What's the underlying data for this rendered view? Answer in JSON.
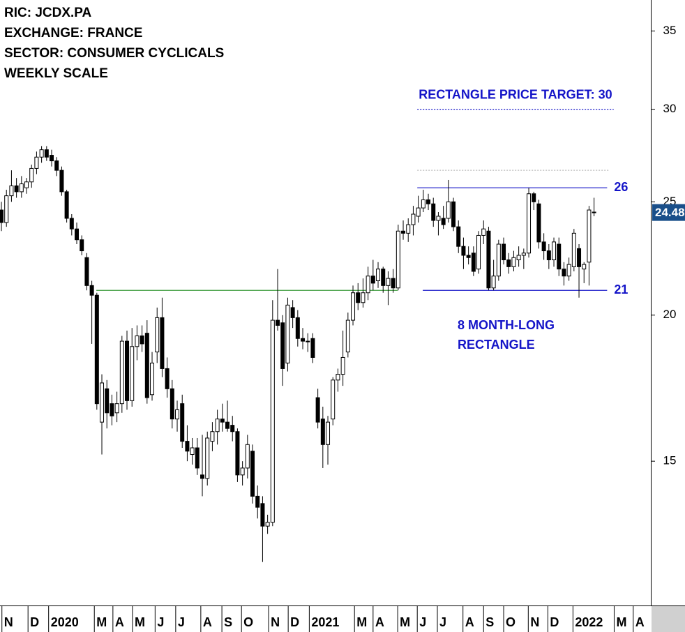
{
  "chart_data": {
    "type": "candlestick",
    "header": [
      "RIC: JCDX.PA",
      "EXCHANGE: FRANCE",
      "SECTOR: CONSUMER CYCLICALS",
      "WEEKLY SCALE"
    ],
    "annotation": [
      "8 MONTH-LONG",
      "RECTANGLE"
    ],
    "log_scale": true,
    "ylim": [
      11.29,
      37.2
    ],
    "yticks": [
      15,
      20,
      25,
      30,
      35
    ],
    "xlim": [
      -0.28,
      129.3
    ],
    "xticks": [
      {
        "value": 0.1,
        "label": "N"
      },
      {
        "value": 5.3,
        "label": "D"
      },
      {
        "value": 9.4,
        "label": "2020"
      },
      {
        "value": 18.5,
        "label": "M"
      },
      {
        "value": 22.2,
        "label": "A"
      },
      {
        "value": 26.1,
        "label": "M"
      },
      {
        "value": 30.6,
        "label": "J"
      },
      {
        "value": 34.7,
        "label": "J"
      },
      {
        "value": 39.7,
        "label": "A"
      },
      {
        "value": 43.9,
        "label": "S"
      },
      {
        "value": 47.8,
        "label": "O"
      },
      {
        "value": 53.2,
        "label": "N"
      },
      {
        "value": 57.1,
        "label": "D"
      },
      {
        "value": 61.3,
        "label": "2021"
      },
      {
        "value": 70.3,
        "label": "M"
      },
      {
        "value": 74.0,
        "label": "A"
      },
      {
        "value": 78.9,
        "label": "M"
      },
      {
        "value": 82.8,
        "label": "J"
      },
      {
        "value": 86.8,
        "label": "J"
      },
      {
        "value": 91.9,
        "label": "A"
      },
      {
        "value": 96.0,
        "label": "S"
      },
      {
        "value": 100.0,
        "label": "O"
      },
      {
        "value": 104.9,
        "label": "N"
      },
      {
        "value": 108.8,
        "label": "D"
      },
      {
        "value": 113.8,
        "label": "2022"
      },
      {
        "value": 122.0,
        "label": "M"
      },
      {
        "value": 125.8,
        "label": "A"
      }
    ],
    "up_color": "#ffffff",
    "down_color": "#000000",
    "price_tag_color": "#1a4f8a",
    "levels": [
      {
        "value": 25.7,
        "label": "26",
        "x": [
          82.8,
          120.6
        ],
        "color": "#1414c8"
      },
      {
        "value": 21,
        "label": "21",
        "x": [
          83.9,
          120.6
        ],
        "color": "#1414c8"
      },
      {
        "value": 21,
        "x": [
          18.9,
          78.9
        ],
        "color": "#3a9a3a"
      },
      {
        "value": 26.6,
        "x": [
          82.8,
          120.9
        ],
        "color": "#bbbbbb",
        "dash": true
      },
      {
        "value": 30,
        "label": "RECTANGLE PRICE TARGET: 30",
        "x": [
          82.8,
          121.9
        ],
        "color": "#1414c8",
        "dash": true
      }
    ],
    "x": [
      0,
      1,
      2,
      3,
      4,
      5,
      6,
      7,
      8,
      9,
      10,
      11,
      12,
      13,
      14,
      15,
      16,
      17,
      18,
      19,
      20,
      21,
      22,
      23,
      24,
      25,
      26,
      27,
      28,
      29,
      30,
      31,
      32,
      33,
      34,
      35,
      36,
      37,
      38,
      39,
      40,
      41,
      42,
      43,
      44,
      45,
      46,
      47,
      48,
      49,
      50,
      51,
      52,
      53,
      54,
      55,
      56,
      57,
      58,
      59,
      60,
      61,
      62,
      63,
      64,
      65,
      66,
      67,
      68,
      69,
      70,
      71,
      72,
      73,
      74,
      75,
      76,
      77,
      78,
      79,
      80,
      81,
      82,
      83,
      84,
      85,
      86,
      87,
      88,
      89,
      90,
      91,
      92,
      93,
      94,
      95,
      96,
      97,
      98,
      99,
      100,
      101,
      102,
      103,
      104,
      105,
      106,
      107,
      108,
      109,
      110,
      111,
      112,
      113,
      114,
      115,
      116,
      117,
      118
    ],
    "open": [
      24.6,
      24.0,
      25.3,
      25.8,
      25.5,
      25.7,
      26.0,
      26.7,
      27.3,
      27.7,
      27.4,
      27.1,
      26.6,
      25.5,
      24.2,
      23.7,
      23.2,
      22.4,
      21.2,
      20.8,
      16.2,
      17.3,
      16.8,
      16.5,
      16.8,
      19.0,
      16.9,
      18.8,
      19.2,
      19.3,
      17.1,
      18.6,
      19.9,
      18.0,
      17.3,
      16.3,
      16.8,
      15.6,
      15.2,
      15.4,
      14.6,
      14.5,
      15.6,
      15.9,
      16.3,
      16.2,
      16.1,
      15.9,
      14.6,
      14.8,
      15.3,
      14.0,
      13.8,
      13.2,
      13.3,
      19.8,
      19.7,
      18.2,
      20.3,
      19.9,
      19.1,
      19.0,
      19.1,
      17.0,
      16.3,
      15.5,
      16.3,
      17.6,
      17.8,
      18.6,
      19.8,
      20.9,
      20.5,
      20.9,
      21.6,
      21.4,
      21.9,
      21.2,
      21.5,
      21.1,
      23.6,
      23.5,
      23.9,
      24.3,
      24.7,
      25.1,
      24.9,
      24.1,
      24.2,
      24.2,
      25.0,
      23.8,
      22.9,
      22.5,
      22.6,
      21.9,
      23.4,
      23.6,
      21.1,
      21.6,
      23.0,
      22.3,
      22.0,
      22.3,
      22.5,
      22.6,
      25.4,
      24.9,
      23.1,
      22.7,
      22.3,
      23.0,
      21.9,
      21.6,
      22.0,
      22.8,
      21.9,
      22.2,
      24.5
    ],
    "high": [
      25.0,
      25.6,
      26.6,
      26.2,
      26.3,
      26.2,
      26.9,
      27.6,
      27.9,
      27.9,
      27.7,
      27.3,
      26.8,
      25.6,
      24.4,
      24.0,
      23.4,
      22.6,
      21.4,
      20.9,
      17.8,
      17.6,
      17.1,
      17.2,
      19.2,
      19.4,
      19.5,
      19.6,
      19.6,
      19.8,
      18.6,
      20.3,
      20.7,
      18.4,
      17.6,
      16.9,
      17.1,
      16.1,
      15.7,
      15.7,
      15.8,
      15.9,
      16.2,
      16.6,
      16.8,
      16.9,
      16.4,
      16.0,
      15.0,
      15.8,
      15.5,
      14.3,
      14.0,
      13.5,
      20.6,
      21.9,
      20.0,
      20.7,
      20.6,
      20.2,
      19.5,
      19.3,
      19.3,
      17.3,
      16.7,
      16.4,
      17.7,
      18.0,
      19.4,
      20.1,
      21.2,
      21.3,
      21.5,
      22.0,
      22.3,
      22.2,
      22.0,
      21.8,
      21.9,
      23.9,
      24.1,
      24.2,
      24.8,
      25.3,
      25.6,
      25.4,
      25.2,
      24.5,
      24.8,
      26.1,
      25.2,
      24.1,
      23.3,
      22.9,
      22.9,
      23.6,
      24.1,
      23.8,
      22.3,
      23.2,
      23.3,
      22.6,
      22.7,
      22.9,
      22.8,
      25.7,
      25.5,
      25.1,
      23.5,
      23.0,
      23.3,
      23.3,
      22.2,
      22.4,
      23.7,
      23.0,
      22.2,
      24.8,
      25.2
    ],
    "low": [
      23.6,
      23.8,
      25.0,
      25.2,
      25.2,
      25.4,
      25.7,
      26.4,
      27.0,
      27.1,
      26.8,
      26.3,
      25.3,
      24.0,
      23.4,
      23.0,
      22.5,
      21.0,
      18.9,
      16.6,
      15.2,
      16.0,
      16.1,
      16.2,
      16.5,
      16.6,
      16.7,
      18.3,
      18.6,
      16.8,
      16.9,
      18.2,
      17.7,
      17.0,
      16.0,
      15.9,
      15.4,
      15.0,
      14.9,
      14.6,
      14.0,
      14.3,
      15.3,
      15.5,
      15.9,
      15.9,
      15.6,
      14.4,
      14.3,
      14.5,
      13.8,
      13.4,
      12.3,
      13.0,
      13.2,
      19.4,
      17.4,
      17.9,
      19.5,
      18.8,
      18.7,
      18.6,
      18.2,
      16.0,
      14.8,
      14.9,
      16.1,
      17.2,
      17.4,
      18.4,
      19.6,
      20.2,
      20.3,
      20.6,
      21.0,
      21.1,
      20.9,
      20.4,
      20.9,
      21.0,
      23.2,
      23.1,
      23.4,
      24.0,
      24.5,
      24.6,
      23.8,
      23.4,
      23.7,
      24.0,
      23.6,
      22.6,
      21.9,
      22.1,
      21.6,
      21.7,
      23.0,
      21.0,
      21.0,
      21.4,
      22.1,
      21.7,
      21.8,
      22.0,
      21.9,
      22.4,
      24.6,
      22.8,
      22.3,
      21.9,
      22.0,
      21.6,
      21.2,
      21.4,
      21.8,
      20.7,
      21.3,
      21.2,
      24.3
    ],
    "close": [
      24.0,
      25.3,
      25.8,
      25.5,
      25.9,
      26.0,
      26.7,
      27.3,
      27.7,
      27.3,
      27.1,
      26.6,
      25.5,
      24.2,
      23.7,
      23.2,
      22.7,
      21.2,
      20.8,
      16.8,
      17.5,
      16.5,
      16.4,
      16.8,
      19.0,
      16.9,
      18.8,
      19.2,
      18.9,
      17.0,
      18.2,
      19.9,
      18.0,
      17.3,
      16.3,
      16.6,
      15.6,
      15.3,
      15.4,
      14.8,
      14.5,
      15.7,
      15.9,
      16.3,
      16.2,
      16.0,
      15.9,
      14.6,
      14.8,
      15.5,
      14.0,
      13.7,
      13.2,
      13.3,
      19.8,
      19.6,
      18.0,
      20.4,
      19.9,
      19.1,
      19.0,
      19.0,
      18.4,
      16.2,
      15.5,
      16.2,
      17.6,
      17.8,
      18.4,
      19.8,
      20.9,
      20.5,
      20.9,
      21.6,
      21.3,
      21.9,
      21.2,
      21.5,
      21.1,
      23.6,
      23.5,
      23.9,
      24.4,
      24.7,
      25.1,
      24.9,
      24.1,
      24.3,
      23.9,
      25.0,
      23.8,
      22.9,
      22.5,
      22.4,
      21.8,
      23.4,
      23.7,
      21.1,
      21.6,
      23.0,
      22.3,
      22.0,
      22.4,
      22.5,
      22.6,
      25.4,
      25.0,
      23.1,
      22.7,
      22.3,
      23.1,
      21.9,
      21.6,
      22.1,
      23.5,
      22.0,
      22.1,
      24.6,
      24.48
    ]
  }
}
